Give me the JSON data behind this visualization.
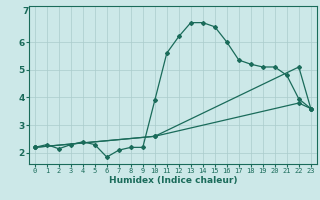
{
  "xlabel": "Humidex (Indice chaleur)",
  "bg_color": "#cce8e8",
  "line_color": "#1a6b5a",
  "grid_color": "#aacccc",
  "xlim": [
    -0.5,
    23.5
  ],
  "ylim": [
    1.6,
    7.3
  ],
  "xticks": [
    0,
    1,
    2,
    3,
    4,
    5,
    6,
    7,
    8,
    9,
    10,
    11,
    12,
    13,
    14,
    15,
    16,
    17,
    18,
    19,
    20,
    21,
    22,
    23
  ],
  "yticks": [
    2,
    3,
    4,
    5,
    6
  ],
  "series1_x": [
    0,
    1,
    2,
    3,
    4,
    5,
    6,
    7,
    8,
    9,
    10,
    11,
    12,
    13,
    14,
    15,
    16,
    17,
    18,
    19,
    20,
    21,
    22,
    23
  ],
  "series1_y": [
    2.2,
    2.3,
    2.15,
    2.3,
    2.4,
    2.3,
    1.85,
    2.1,
    2.2,
    2.2,
    3.9,
    5.6,
    6.2,
    6.7,
    6.7,
    6.55,
    6.0,
    5.35,
    5.2,
    5.1,
    5.1,
    4.8,
    3.95,
    3.6
  ],
  "series2_x": [
    0,
    10,
    22,
    23
  ],
  "series2_y": [
    2.2,
    2.6,
    5.1,
    3.6
  ],
  "series3_x": [
    0,
    10,
    22,
    23
  ],
  "series3_y": [
    2.2,
    2.6,
    3.8,
    3.6
  ]
}
